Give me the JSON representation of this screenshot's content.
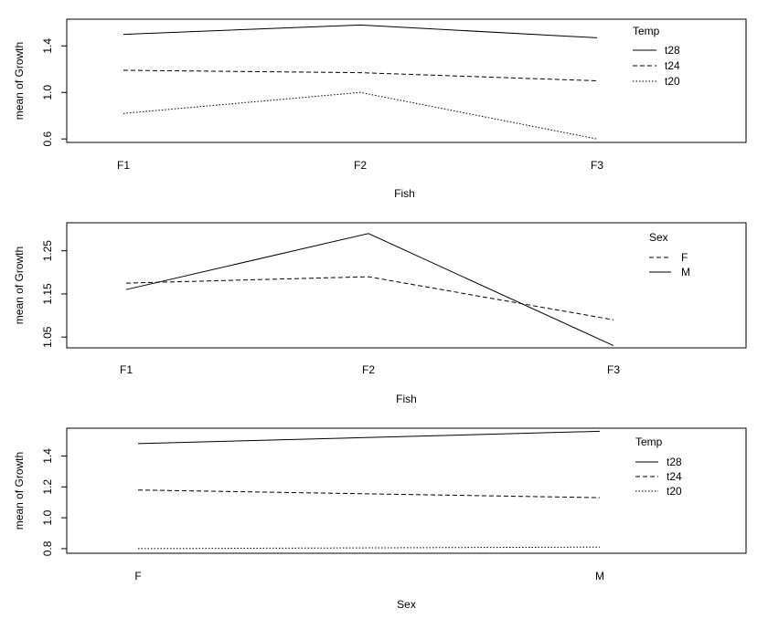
{
  "chart_data": [
    {
      "type": "line",
      "xlabel": "Fish",
      "ylabel": "mean of  Growth",
      "categories": [
        "F1",
        "F2",
        "F3"
      ],
      "yticks": [
        "0.6",
        "1.0",
        "1.4"
      ],
      "ytick_values": [
        0.6,
        1.0,
        1.4
      ],
      "ylim": [
        0.57,
        1.63
      ],
      "legend_title": "Temp",
      "legend_position": "top-right",
      "series": [
        {
          "name": "t28",
          "linestyle": "solid",
          "values": [
            1.5,
            1.58,
            1.47
          ]
        },
        {
          "name": "t24",
          "linestyle": "dashed",
          "values": [
            1.19,
            1.17,
            1.1
          ]
        },
        {
          "name": "t20",
          "linestyle": "dotted",
          "values": [
            0.82,
            1.0,
            0.6
          ]
        }
      ]
    },
    {
      "type": "line",
      "xlabel": "Fish",
      "ylabel": "mean of  Growth",
      "categories": [
        "F1",
        "F2",
        "F3"
      ],
      "yticks": [
        "1.05",
        "1.15",
        "1.25"
      ],
      "ytick_values": [
        1.05,
        1.15,
        1.25
      ],
      "ylim": [
        1.025,
        1.315
      ],
      "legend_title": "Sex",
      "legend_position": "top-right",
      "series": [
        {
          "name": "F",
          "linestyle": "dashed",
          "values": [
            1.175,
            1.19,
            1.09
          ]
        },
        {
          "name": "M",
          "linestyle": "solid",
          "values": [
            1.16,
            1.29,
            1.03
          ]
        }
      ]
    },
    {
      "type": "line",
      "xlabel": "Sex",
      "ylabel": "mean of  Growth",
      "categories": [
        "F",
        "M"
      ],
      "yticks": [
        "0.8",
        "1.0",
        "1.2",
        "1.4"
      ],
      "ytick_values": [
        0.8,
        1.0,
        1.2,
        1.4
      ],
      "ylim": [
        0.77,
        1.58
      ],
      "legend_title": "Temp",
      "legend_position": "top-right",
      "series": [
        {
          "name": "t28",
          "linestyle": "solid",
          "values": [
            1.48,
            1.56
          ]
        },
        {
          "name": "t24",
          "linestyle": "dashed",
          "values": [
            1.18,
            1.13
          ]
        },
        {
          "name": "t20",
          "linestyle": "dotted",
          "values": [
            0.8,
            0.81
          ]
        }
      ]
    }
  ]
}
